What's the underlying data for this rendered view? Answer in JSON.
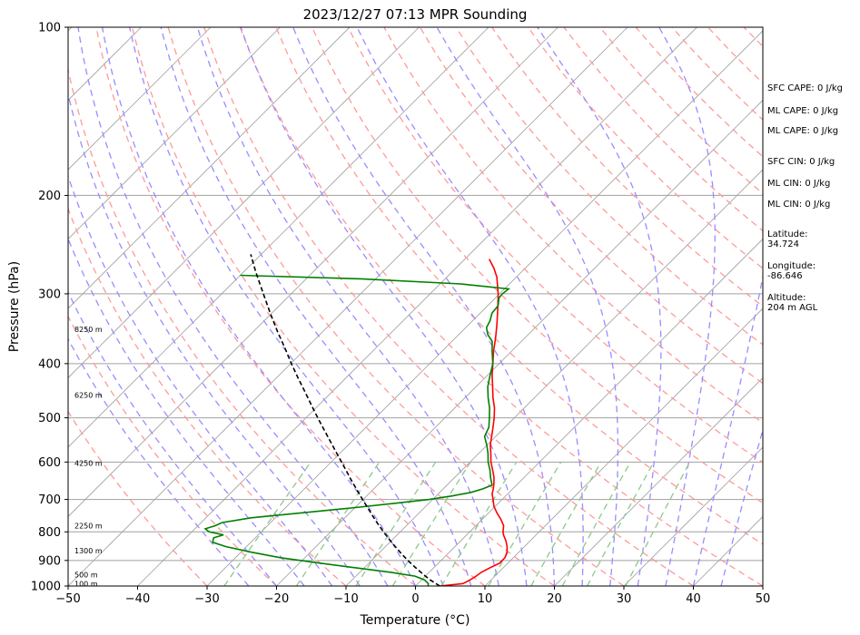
{
  "chart_data": {
    "type": "line",
    "title": "2023/12/27 07:13 MPR Sounding",
    "xlabel": "Temperature (°C)",
    "ylabel": "Pressure (hPa)",
    "xlim": [
      -50,
      50
    ],
    "ylim": [
      1000,
      100
    ],
    "y_scale": "log",
    "skew": true,
    "grid": true,
    "x_ticks": [
      -50,
      -40,
      -30,
      -20,
      -10,
      0,
      10,
      20,
      30,
      40,
      50
    ],
    "y_ticks": [
      100,
      200,
      300,
      400,
      500,
      600,
      700,
      800,
      900,
      1000
    ],
    "series": [
      {
        "color": "#ff0000",
        "points": [
          [
            1000,
            3.5
          ],
          [
            990,
            6.5
          ],
          [
            975,
            7.0
          ],
          [
            960,
            7.3
          ],
          [
            945,
            7.5
          ],
          [
            925,
            8.2
          ],
          [
            910,
            8.8
          ],
          [
            890,
            8.8
          ],
          [
            870,
            8.3
          ],
          [
            850,
            7.5
          ],
          [
            830,
            6.5
          ],
          [
            810,
            5.3
          ],
          [
            800,
            4.8
          ],
          [
            780,
            4.0
          ],
          [
            760,
            2.7
          ],
          [
            740,
            1.2
          ],
          [
            720,
            -0.2
          ],
          [
            700,
            -1.3
          ],
          [
            685,
            -2.2
          ],
          [
            670,
            -2.8
          ],
          [
            655,
            -3.5
          ],
          [
            640,
            -4.3
          ],
          [
            620,
            -5.6
          ],
          [
            600,
            -7.0
          ],
          [
            580,
            -8.2
          ],
          [
            560,
            -9.5
          ],
          [
            540,
            -10.6
          ],
          [
            520,
            -11.7
          ],
          [
            500,
            -12.9
          ],
          [
            480,
            -14.3
          ],
          [
            460,
            -16.0
          ],
          [
            440,
            -17.6
          ],
          [
            420,
            -19.3
          ],
          [
            400,
            -20.9
          ],
          [
            380,
            -22.6
          ],
          [
            360,
            -24.2
          ],
          [
            340,
            -26.0
          ],
          [
            320,
            -28.0
          ],
          [
            300,
            -30.2
          ],
          [
            280,
            -32.8
          ],
          [
            270,
            -34.5
          ],
          [
            260,
            -36.5
          ]
        ]
      },
      {
        "color": "#008000",
        "points": [
          [
            1000,
            1.8
          ],
          [
            990,
            1.5
          ],
          [
            975,
            0.4
          ],
          [
            960,
            -1.5
          ],
          [
            945,
            -5.5
          ],
          [
            930,
            -10.5
          ],
          [
            910,
            -17.0
          ],
          [
            890,
            -23.5
          ],
          [
            870,
            -28.5
          ],
          [
            850,
            -33.0
          ],
          [
            835,
            -35.5
          ],
          [
            820,
            -36.0
          ],
          [
            810,
            -35.0
          ],
          [
            800,
            -37.5
          ],
          [
            790,
            -38.5
          ],
          [
            780,
            -37.5
          ],
          [
            770,
            -37.0
          ],
          [
            755,
            -33.5
          ],
          [
            740,
            -27.0
          ],
          [
            725,
            -20.5
          ],
          [
            710,
            -14.5
          ],
          [
            700,
            -10.5
          ],
          [
            690,
            -7.7
          ],
          [
            680,
            -5.5
          ],
          [
            670,
            -4.3
          ],
          [
            660,
            -3.5
          ],
          [
            640,
            -4.8
          ],
          [
            620,
            -6.0
          ],
          [
            600,
            -7.4
          ],
          [
            580,
            -8.6
          ],
          [
            560,
            -10.0
          ],
          [
            540,
            -11.6
          ],
          [
            520,
            -12.3
          ],
          [
            500,
            -13.6
          ],
          [
            480,
            -15.0
          ],
          [
            460,
            -16.7
          ],
          [
            440,
            -18.3
          ],
          [
            420,
            -19.6
          ],
          [
            400,
            -20.9
          ],
          [
            380,
            -22.8
          ],
          [
            365,
            -24.2
          ],
          [
            355,
            -25.8
          ],
          [
            345,
            -27.0
          ],
          [
            335,
            -27.5
          ],
          [
            325,
            -28.3
          ],
          [
            315,
            -28.5
          ],
          [
            305,
            -29.5
          ],
          [
            300,
            -29.6
          ],
          [
            294,
            -29.4
          ],
          [
            288,
            -37.0
          ],
          [
            282,
            -52.0
          ],
          [
            278,
            -70.0
          ]
        ]
      },
      {
        "color": "#000000",
        "style": "dashed",
        "points": [
          [
            1000,
            3.5
          ],
          [
            975,
            1.2
          ],
          [
            950,
            -0.8
          ],
          [
            925,
            -2.8
          ],
          [
            900,
            -4.8
          ],
          [
            875,
            -6.7
          ],
          [
            850,
            -8.6
          ],
          [
            825,
            -10.5
          ],
          [
            800,
            -12.4
          ],
          [
            775,
            -14.3
          ],
          [
            750,
            -16.2
          ],
          [
            725,
            -18.1
          ],
          [
            700,
            -20.1
          ],
          [
            675,
            -22.1
          ],
          [
            650,
            -24.2
          ],
          [
            625,
            -26.3
          ],
          [
            600,
            -28.5
          ],
          [
            575,
            -30.8
          ],
          [
            550,
            -33.2
          ],
          [
            525,
            -35.7
          ],
          [
            500,
            -38.3
          ],
          [
            475,
            -41.0
          ],
          [
            450,
            -43.8
          ],
          [
            425,
            -46.8
          ],
          [
            400,
            -49.9
          ],
          [
            375,
            -53.1
          ],
          [
            350,
            -56.6
          ],
          [
            325,
            -60.2
          ],
          [
            300,
            -64.0
          ],
          [
            275,
            -68.1
          ],
          [
            255,
            -71.5
          ]
        ]
      }
    ],
    "height_labels": [
      {
        "pressure": 990,
        "text": "100 m"
      },
      {
        "pressure": 955,
        "text": "500 m"
      },
      {
        "pressure": 865,
        "text": "1300 m"
      },
      {
        "pressure": 780,
        "text": "2250 m"
      },
      {
        "pressure": 603,
        "text": "4250 m"
      },
      {
        "pressure": 455,
        "text": "6250 m"
      },
      {
        "pressure": 347,
        "text": "8250 m"
      }
    ],
    "background_colors": {
      "isotherms": "#a0a0a0",
      "dry_adiabats": "#ff9a9a",
      "moist_adiabats": "#9a8cff",
      "mixing_ratio": "#8cc88c"
    }
  },
  "side_panel": {
    "sfc_cape": "SFC CAPE: 0 J/kg",
    "ml_cape_1": "ML CAPE: 0 J/kg",
    "ml_cape_2": "ML CAPE: 0 J/kg",
    "sfc_cin": "SFC CIN: 0 J/kg",
    "ml_cin_1": "ML CIN: 0 J/kg",
    "ml_cin_2": "ML CIN: 0 J/kg",
    "latitude_label": "Latitude:",
    "latitude_value": "34.724",
    "longitude_label": "Longitude:",
    "longitude_value": "-86.646",
    "altitude_label": "Altitude:",
    "altitude_value": "204 m AGL"
  }
}
